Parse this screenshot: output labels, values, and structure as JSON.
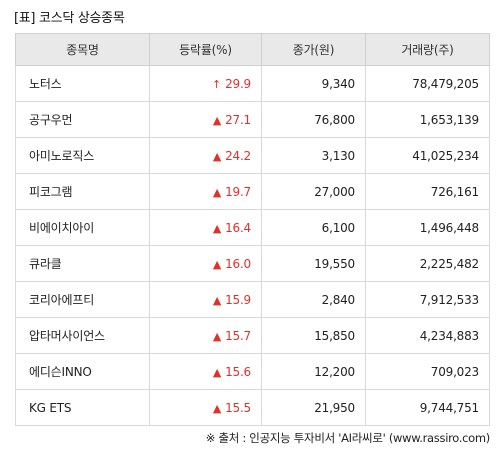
{
  "title": "[표] 코스닥 상승종목",
  "headers": [
    "종목명",
    "등락률(%)",
    "종가(원)",
    "거래량(주)"
  ],
  "rows": [
    {
      "name": "노터스",
      "arrow": "↑",
      "change": "29.9",
      "price": "9,340",
      "volume": "78,479,205"
    },
    {
      "name": "공구우먼",
      "arrow": "▲",
      "change": "27.1",
      "price": "76,800",
      "volume": "1,653,139"
    },
    {
      "name": "아미노로직스",
      "arrow": "▲",
      "change": "24.2",
      "price": "3,130",
      "volume": "41,025,234"
    },
    {
      "name": "피코그램",
      "arrow": "▲",
      "change": "19.7",
      "price": "27,000",
      "volume": "726,161"
    },
    {
      "name": "비에이치아이",
      "arrow": "▲",
      "change": "16.4",
      "price": "6,100",
      "volume": "1,496,448"
    },
    {
      "name": "큐라클",
      "arrow": "▲",
      "change": "16.0",
      "price": "19,550",
      "volume": "2,225,482"
    },
    {
      "name": "코리아에프티",
      "arrow": "▲",
      "change": "15.9",
      "price": "2,840",
      "volume": "7,912,533"
    },
    {
      "name": "압타머사이언스",
      "arrow": "▲",
      "change": "15.7",
      "price": "15,850",
      "volume": "4,234,883"
    },
    {
      "name": "에디슨INNO",
      "arrow": "▲",
      "change": "15.6",
      "price": "12,200",
      "volume": "709,023"
    },
    {
      "name": "KG ETS",
      "arrow": "▲",
      "change": "15.5",
      "price": "21,950",
      "volume": "9,744,751"
    }
  ],
  "source": "※ 출처 : 인공지능 투자비서 'AI라씨로' (www.rassiro.com)",
  "colors": {
    "up": "#e0302b",
    "header_bg": "#e9e9e9",
    "border": "#d9d9d9"
  }
}
